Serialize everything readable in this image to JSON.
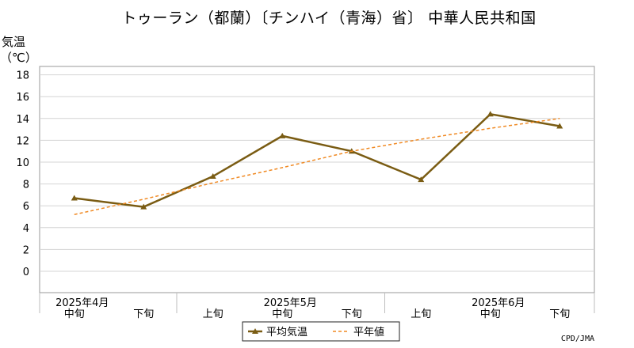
{
  "chart_data": {
    "type": "line",
    "title": "トゥーラン（都蘭）〔チンハイ（青海）省〕 中華人民共和国",
    "ylabel": "気温",
    "yunit": "（℃）",
    "ylim": [
      -2,
      19
    ],
    "yticks": [
      "0",
      "2",
      "4",
      "6",
      "8",
      "10",
      "12",
      "14",
      "16",
      "18"
    ],
    "categories": [
      "中旬",
      "下旬",
      "上旬",
      "中旬",
      "下旬",
      "上旬",
      "中旬",
      "下旬"
    ],
    "months": [
      "2025年4月",
      "2025年5月",
      "2025年6月"
    ],
    "series": [
      {
        "name": "平均気温",
        "values": [
          6.7,
          5.9,
          8.7,
          12.4,
          11.0,
          8.4,
          14.4,
          13.3
        ],
        "color": "#7a5c13",
        "marker": "triangle"
      },
      {
        "name": "平年値",
        "values": [
          5.2,
          6.6,
          8.1,
          9.5,
          11.0,
          12.1,
          13.1,
          14.0
        ],
        "color": "#f08a24",
        "style": "dashed"
      }
    ],
    "grid": true,
    "legend": "bottom-center",
    "source": "CPD/JMA"
  }
}
